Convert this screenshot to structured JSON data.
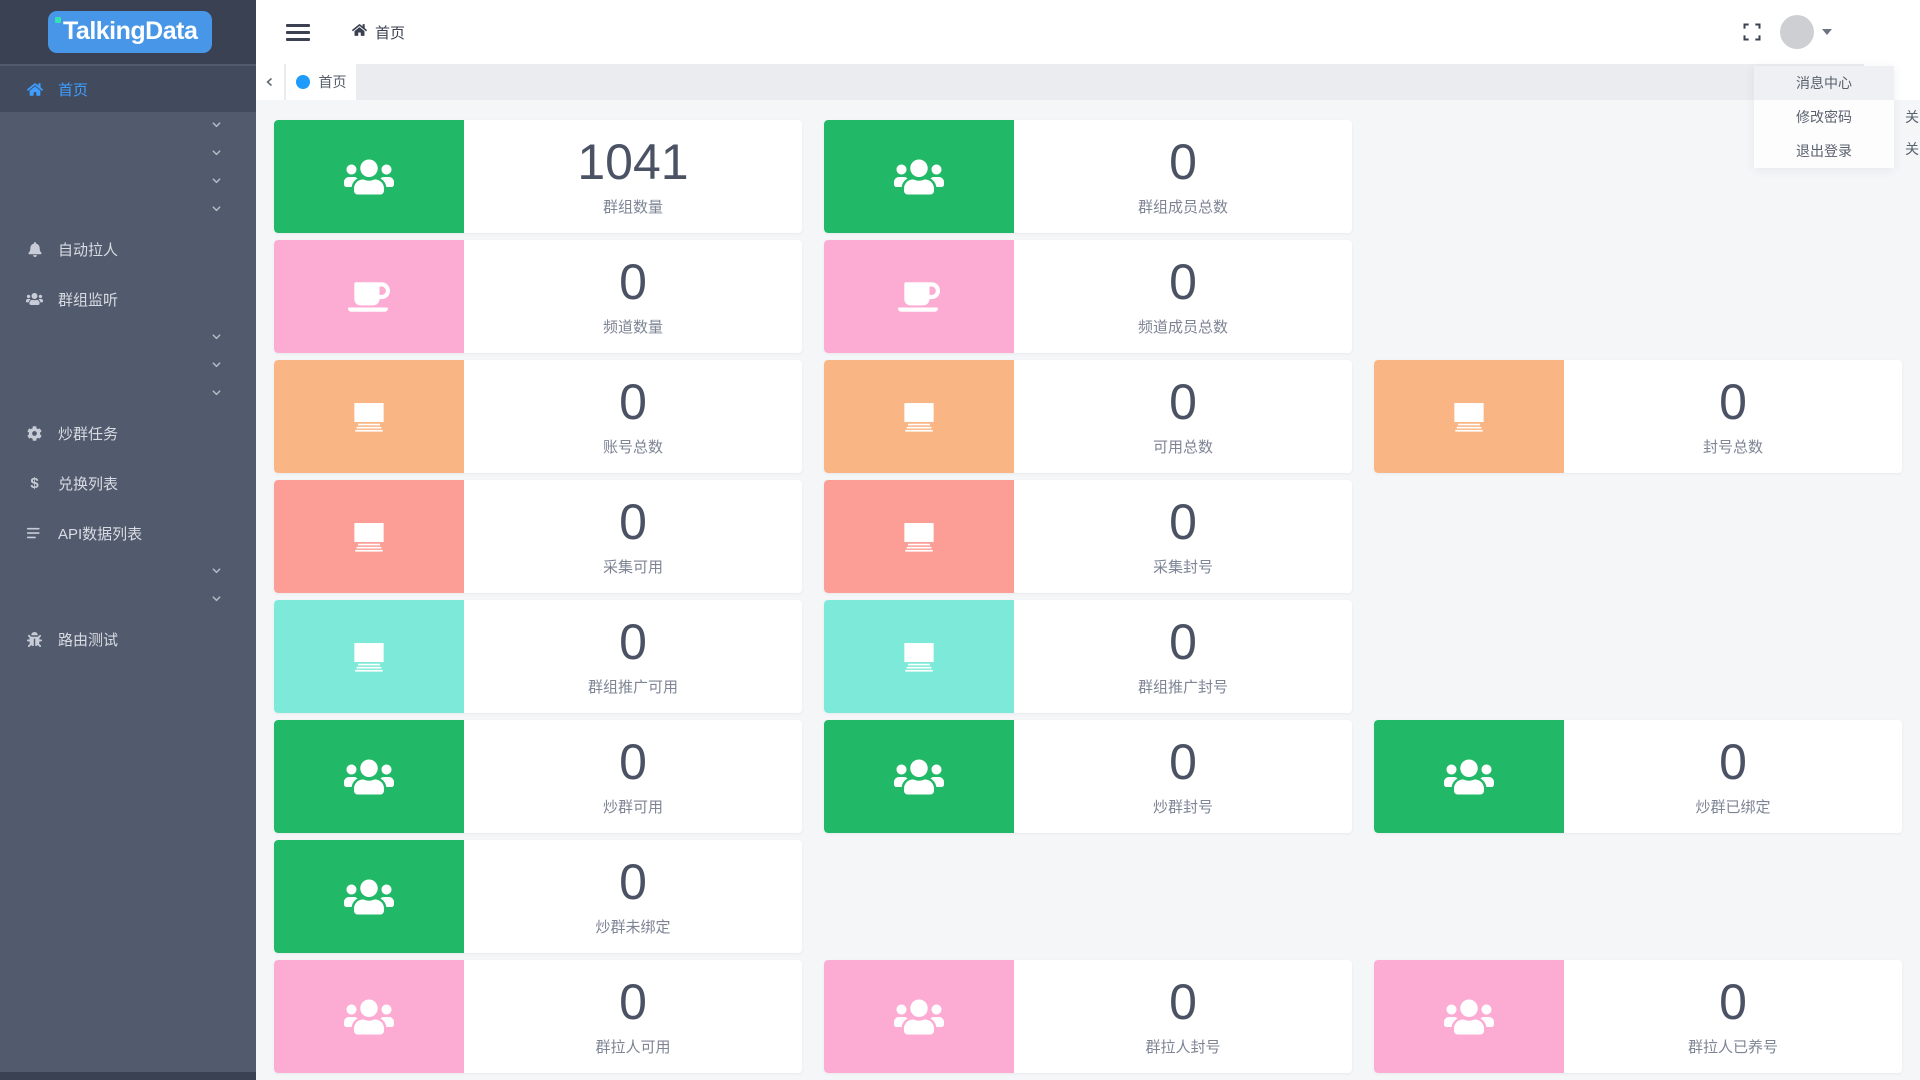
{
  "logo": {
    "text": "TalkingData"
  },
  "sidebar": {
    "items": [
      {
        "type": "item",
        "icon": "home-icon",
        "label": "首页",
        "active": true
      },
      {
        "type": "chevron"
      },
      {
        "type": "chevron"
      },
      {
        "type": "chevron"
      },
      {
        "type": "chevron"
      },
      {
        "type": "item",
        "icon": "bell-icon",
        "label": "自动拉人"
      },
      {
        "type": "item",
        "icon": "users-icon",
        "label": "群组监听"
      },
      {
        "type": "chevron"
      },
      {
        "type": "chevron"
      },
      {
        "type": "chevron"
      },
      {
        "type": "item",
        "icon": "gear-icon",
        "label": "炒群任务"
      },
      {
        "type": "item",
        "icon": "dollar-icon",
        "label": "兑换列表"
      },
      {
        "type": "item",
        "icon": "list-icon",
        "label": "API数据列表"
      },
      {
        "type": "chevron"
      },
      {
        "type": "chevron"
      },
      {
        "type": "item",
        "icon": "bug-icon",
        "label": "路由测试"
      }
    ]
  },
  "header": {
    "breadcrumb": "首页"
  },
  "tabs": {
    "active": "首页"
  },
  "user_menu": {
    "items": [
      "消息中心",
      "修改密码",
      "退出登录"
    ]
  },
  "clipped_menu": {
    "items": [
      "关",
      "关"
    ]
  },
  "colors": {
    "green": "#21b867",
    "pink": "#fcabd3",
    "orange": "#f9b583",
    "salmon": "#fc9d96",
    "teal": "#7de9d9",
    "accent_blue": "#1f9bfb",
    "logo_blue": "#4796e8"
  },
  "cards": {
    "rows": [
      [
        {
          "icon": "users-icon",
          "color": "green",
          "value": "1041",
          "label": "群组数量"
        },
        {
          "icon": "users-icon",
          "color": "green",
          "value": "0",
          "label": "群组成员总数"
        }
      ],
      [
        {
          "icon": "coffee-icon",
          "color": "pink",
          "value": "0",
          "label": "频道数量"
        },
        {
          "icon": "coffee-icon",
          "color": "pink",
          "value": "0",
          "label": "频道成员总数"
        }
      ],
      [
        {
          "icon": "money-icon",
          "color": "orange",
          "value": "0",
          "label": "账号总数"
        },
        {
          "icon": "money-icon",
          "color": "orange",
          "value": "0",
          "label": "可用总数"
        },
        {
          "icon": "money-icon",
          "color": "orange",
          "value": "0",
          "label": "封号总数"
        }
      ],
      [
        {
          "icon": "money-icon",
          "color": "salmon",
          "value": "0",
          "label": "采集可用"
        },
        {
          "icon": "money-icon",
          "color": "salmon",
          "value": "0",
          "label": "采集封号"
        }
      ],
      [
        {
          "icon": "money-icon",
          "color": "teal",
          "value": "0",
          "label": "群组推广可用"
        },
        {
          "icon": "money-icon",
          "color": "teal",
          "value": "0",
          "label": "群组推广封号"
        }
      ],
      [
        {
          "icon": "users-icon",
          "color": "green",
          "value": "0",
          "label": "炒群可用"
        },
        {
          "icon": "users-icon",
          "color": "green",
          "value": "0",
          "label": "炒群封号"
        },
        {
          "icon": "users-icon",
          "color": "green",
          "value": "0",
          "label": "炒群已绑定"
        }
      ],
      [
        {
          "icon": "users-icon",
          "color": "green",
          "value": "0",
          "label": "炒群未绑定"
        }
      ],
      [
        {
          "icon": "users-icon",
          "color": "pink",
          "value": "0",
          "label": "群拉人可用"
        },
        {
          "icon": "users-icon",
          "color": "pink",
          "value": "0",
          "label": "群拉人封号"
        },
        {
          "icon": "users-icon",
          "color": "pink",
          "value": "0",
          "label": "群拉人已养号"
        }
      ]
    ]
  }
}
